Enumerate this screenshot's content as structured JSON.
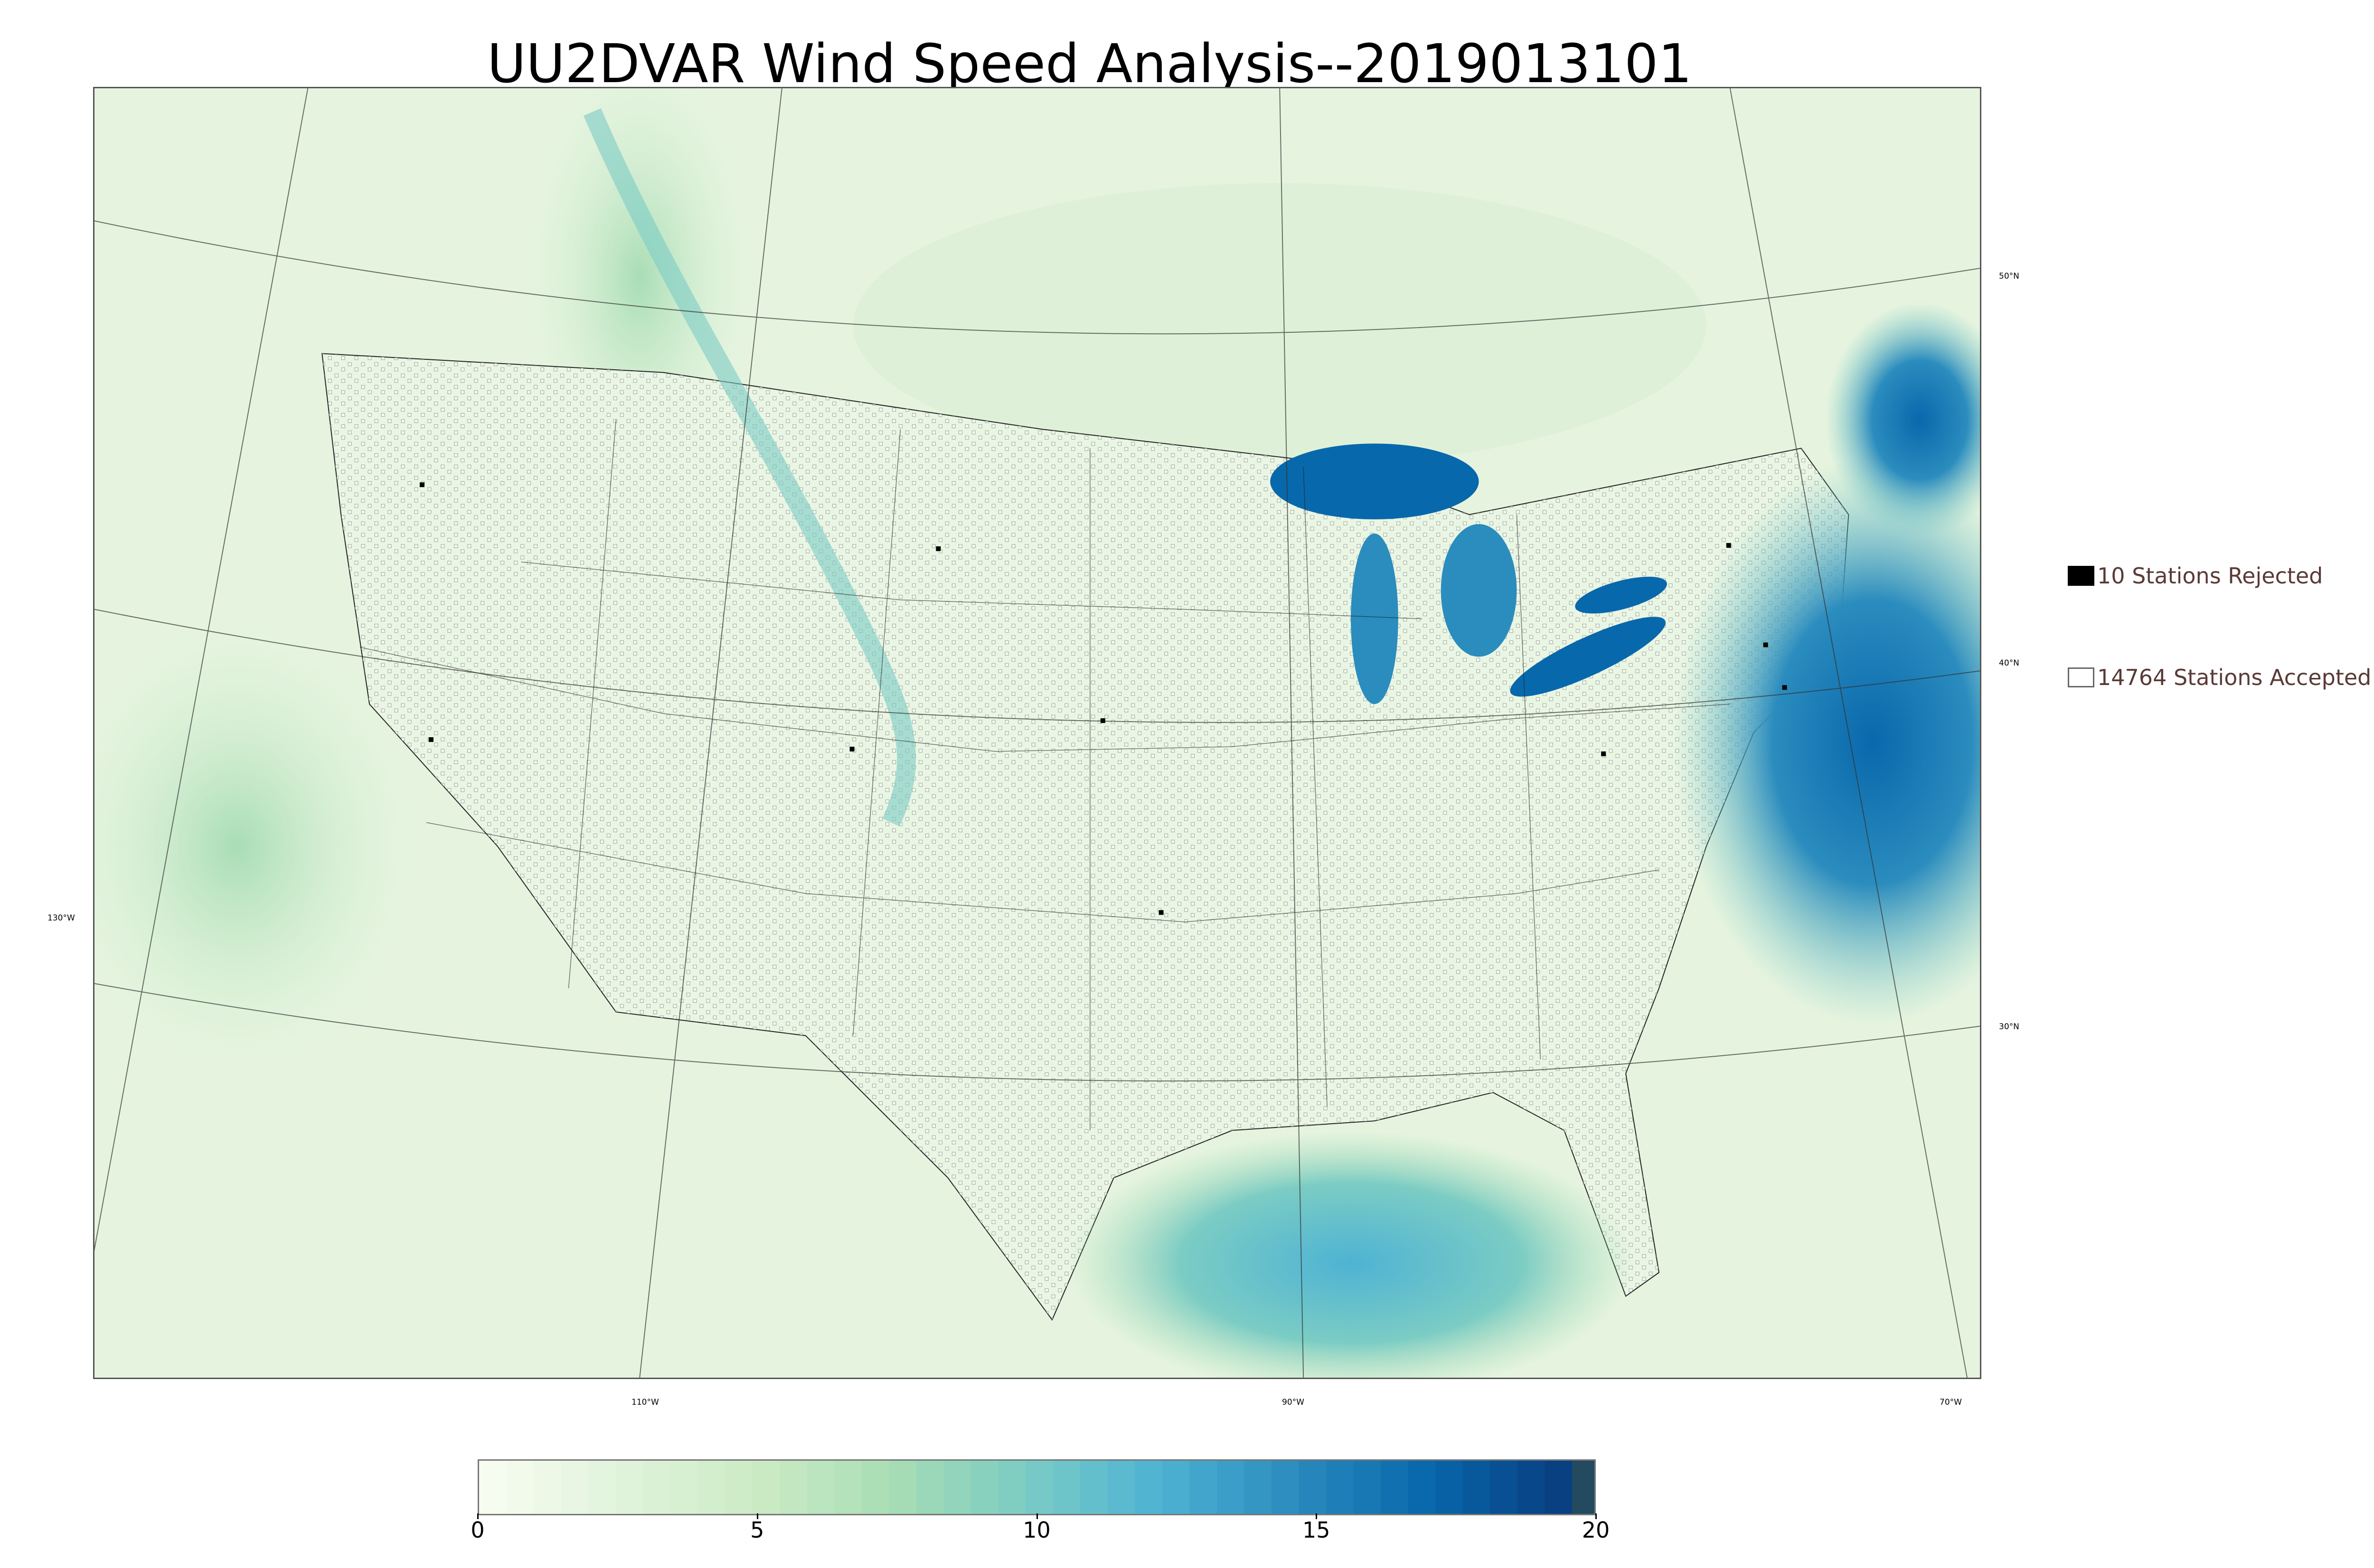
{
  "title": "UU2DVAR Wind Speed Analysis--2019013101",
  "map": {
    "lon_labels": [
      "130°W",
      "110°W",
      "90°W",
      "70°W"
    ],
    "lat_labels": [
      "50°N",
      "40°N",
      "30°N"
    ]
  },
  "legend": {
    "rejected": "10 Stations Rejected",
    "accepted": "14764 Stations Accepted"
  },
  "colorbar": {
    "ticks": [
      "0",
      "5",
      "10",
      "15",
      "20"
    ],
    "range": [
      0,
      20
    ],
    "colors": [
      "#f7fcf0",
      "#e0f3db",
      "#ccebc5",
      "#a8ddb5",
      "#7bccc4",
      "#4eb3d3",
      "#2b8cbe",
      "#0868ac",
      "#084081",
      "#234a5e"
    ]
  }
}
